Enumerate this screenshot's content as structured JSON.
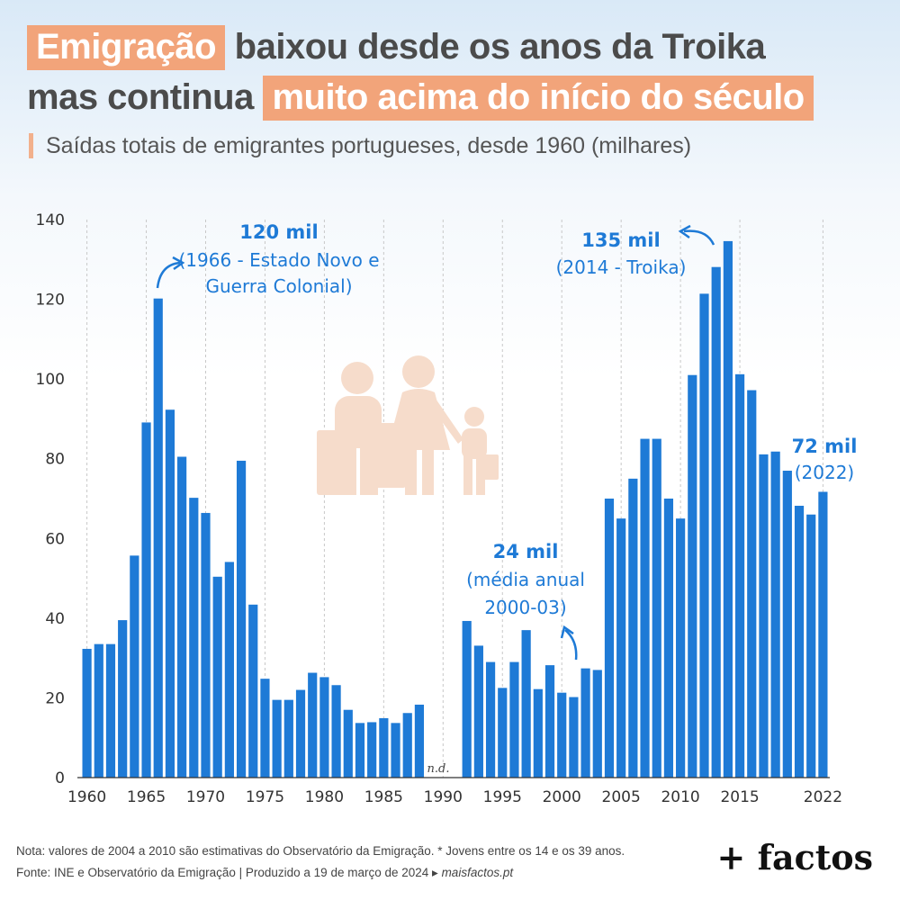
{
  "title": {
    "line1_highlight": "Emigração",
    "line1_rest": "baixou desde os anos da Troika",
    "line2_start": "mas continua",
    "line2_highlight": "muito acima do início do século"
  },
  "subtitle": "Saídas totais de emigrantes portugueses, desde 1960 (milhares)",
  "colors": {
    "bar": "#1e7ad6",
    "highlight": "#f2a47a",
    "icon": "#f6dccb",
    "annotation": "#1e7ad6"
  },
  "icons": [
    "family-with-suitcases-icon"
  ],
  "chart_data": {
    "type": "bar",
    "x": [
      1960,
      1961,
      1962,
      1963,
      1964,
      1965,
      1966,
      1967,
      1968,
      1969,
      1970,
      1971,
      1972,
      1973,
      1974,
      1975,
      1976,
      1977,
      1978,
      1979,
      1980,
      1981,
      1982,
      1983,
      1984,
      1985,
      1986,
      1987,
      1988,
      1989,
      1990,
      1991,
      1992,
      1993,
      1994,
      1995,
      1996,
      1997,
      1998,
      1999,
      2000,
      2001,
      2002,
      2003,
      2004,
      2005,
      2006,
      2007,
      2008,
      2009,
      2010,
      2011,
      2012,
      2013,
      2014,
      2015,
      2016,
      2017,
      2018,
      2019,
      2020,
      2021,
      2022
    ],
    "values": [
      32.3,
      33.5,
      33.5,
      39.5,
      55.7,
      89.1,
      120.2,
      92.3,
      80.5,
      70.2,
      66.4,
      50.4,
      54.1,
      79.5,
      43.4,
      24.8,
      19.5,
      19.5,
      22.0,
      26.3,
      25.2,
      23.2,
      17.0,
      13.7,
      13.9,
      14.9,
      13.7,
      16.2,
      18.3,
      null,
      null,
      null,
      39.3,
      33.1,
      29.0,
      22.5,
      29.0,
      37.0,
      22.2,
      28.2,
      21.3,
      20.2,
      27.4,
      27.0,
      70.0,
      65.0,
      75.0,
      85.0,
      85.0,
      70.0,
      65.0,
      101.0,
      121.4,
      128.1,
      134.6,
      101.2,
      97.2,
      81.1,
      81.8,
      77.0,
      68.2,
      66.0,
      71.7
    ],
    "xticks": [
      "1960",
      "1965",
      "1970",
      "1975",
      "1980",
      "1985",
      "1990",
      "1995",
      "2000",
      "2005",
      "2010",
      "2015",
      "2022"
    ],
    "yticks": [
      "0",
      "20",
      "40",
      "60",
      "80",
      "100",
      "120",
      "140"
    ],
    "ylim": [
      0,
      140
    ],
    "grid": "vertical dashed",
    "na_label": "n.d.",
    "annotations": [
      {
        "bold": "120 mil",
        "lines": [
          "(1966 - Estado Novo e",
          "Guerra Colonial)"
        ]
      },
      {
        "bold": "135 mil",
        "lines": [
          "(2014 - Troika)"
        ]
      },
      {
        "bold": "24 mil",
        "lines": [
          "(média anual",
          "2000-03)"
        ]
      },
      {
        "bold": "72 mil",
        "lines": [
          "(2022)"
        ]
      }
    ]
  },
  "footer": {
    "note": "Nota: valores de 2004 a 2010 são estimativas do Observatório da Emigração. * Jovens entre os 14 e os 39 anos.",
    "source_prefix": "Fonte: INE e Observatório da Emigração | Produzido a 19 de março de 2024 ▸",
    "source_site": "maisfactos.pt",
    "brand": "+ factos"
  }
}
